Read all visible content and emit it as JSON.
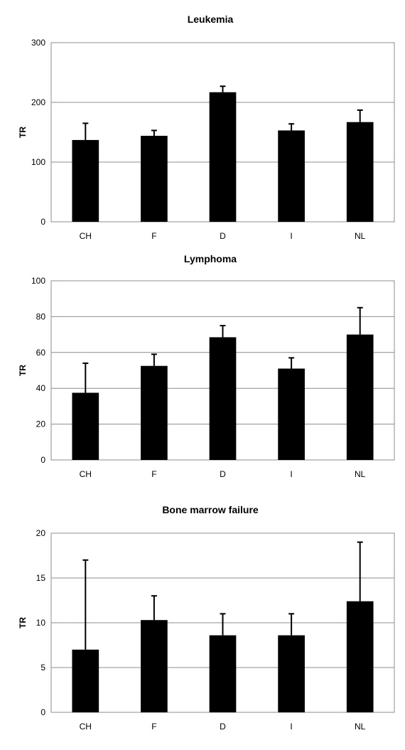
{
  "chart_data": [
    {
      "type": "bar",
      "title": "Leukemia",
      "ylabel": "TR",
      "categories": [
        "CH",
        "F",
        "D",
        "I",
        "NL"
      ],
      "values": [
        137,
        144,
        217,
        153,
        167
      ],
      "error_upper": [
        28,
        9,
        10,
        11,
        20
      ],
      "ylim": [
        0,
        300
      ],
      "yticks": [
        0,
        100,
        200,
        300
      ],
      "grid": true,
      "bar_color": "#000000"
    },
    {
      "type": "bar",
      "title": "Lymphoma",
      "ylabel": "TR",
      "categories": [
        "CH",
        "F",
        "D",
        "I",
        "NL"
      ],
      "values": [
        37.5,
        52.5,
        68.5,
        51,
        70
      ],
      "error_upper": [
        16.5,
        6.5,
        6.5,
        6,
        15
      ],
      "ylim": [
        0,
        100
      ],
      "yticks": [
        0,
        20,
        40,
        60,
        80,
        100
      ],
      "grid": true,
      "bar_color": "#000000"
    },
    {
      "type": "bar",
      "title": "Bone marrow failure",
      "ylabel": "TR",
      "categories": [
        "CH",
        "F",
        "D",
        "I",
        "NL"
      ],
      "values": [
        7,
        10.3,
        8.6,
        8.6,
        12.4
      ],
      "error_upper": [
        10,
        2.7,
        2.4,
        2.4,
        6.6
      ],
      "ylim": [
        0,
        20
      ],
      "yticks": [
        0,
        5,
        10,
        15,
        20
      ],
      "grid": true,
      "bar_color": "#000000"
    }
  ]
}
